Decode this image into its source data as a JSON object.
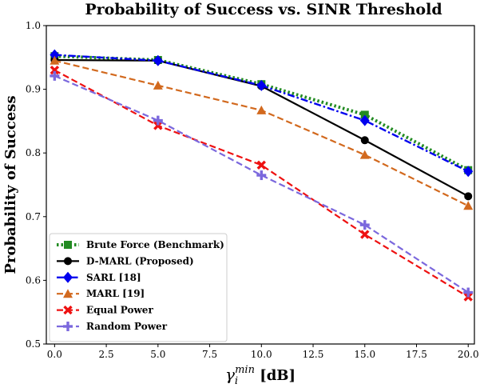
{
  "chart_data": {
    "type": "line",
    "title": "Probability of Success vs. SINR Threshold",
    "xlabel_symbol": "γ",
    "xlabel_sub": "i",
    "xlabel_sup": "min",
    "xlabel_unit": " [dB]",
    "ylabel": "Probability of Success",
    "x": [
      0,
      5,
      10,
      15,
      20
    ],
    "xlim": [
      -0.4,
      20.3
    ],
    "ylim": [
      0.5,
      1.0
    ],
    "xticks": [
      0.0,
      2.5,
      5.0,
      7.5,
      10.0,
      12.5,
      15.0,
      17.5,
      20.0
    ],
    "yticks": [
      0.5,
      0.6,
      0.7,
      0.8,
      0.9,
      1.0
    ],
    "grid": false,
    "legend_position": "lower-left",
    "series": [
      {
        "name": "Brute Force (Benchmark)",
        "values": [
          0.952,
          0.946,
          0.908,
          0.86,
          0.773
        ],
        "color": "#228B22",
        "dash": "dotted",
        "marker": "square"
      },
      {
        "name": "D-MARL (Proposed)",
        "values": [
          0.946,
          0.945,
          0.905,
          0.82,
          0.732
        ],
        "color": "#000000",
        "dash": "solid",
        "marker": "circle"
      },
      {
        "name": "SARL [18]",
        "values": [
          0.954,
          0.945,
          0.906,
          0.851,
          0.771
        ],
        "color": "#0000EE",
        "dash": "dashdot",
        "marker": "diamond"
      },
      {
        "name": "MARL [19]",
        "values": [
          0.945,
          0.906,
          0.867,
          0.797,
          0.717
        ],
        "color": "#D2691E",
        "dash": "dashed",
        "marker": "triangle"
      },
      {
        "name": "Equal Power",
        "values": [
          0.93,
          0.843,
          0.781,
          0.672,
          0.574
        ],
        "color": "#EE1111",
        "dash": "dashed",
        "marker": "x"
      },
      {
        "name": "Random Power",
        "values": [
          0.921,
          0.851,
          0.765,
          0.687,
          0.581
        ],
        "color": "#7B68DD",
        "dash": "dashed",
        "marker": "plus"
      }
    ]
  }
}
